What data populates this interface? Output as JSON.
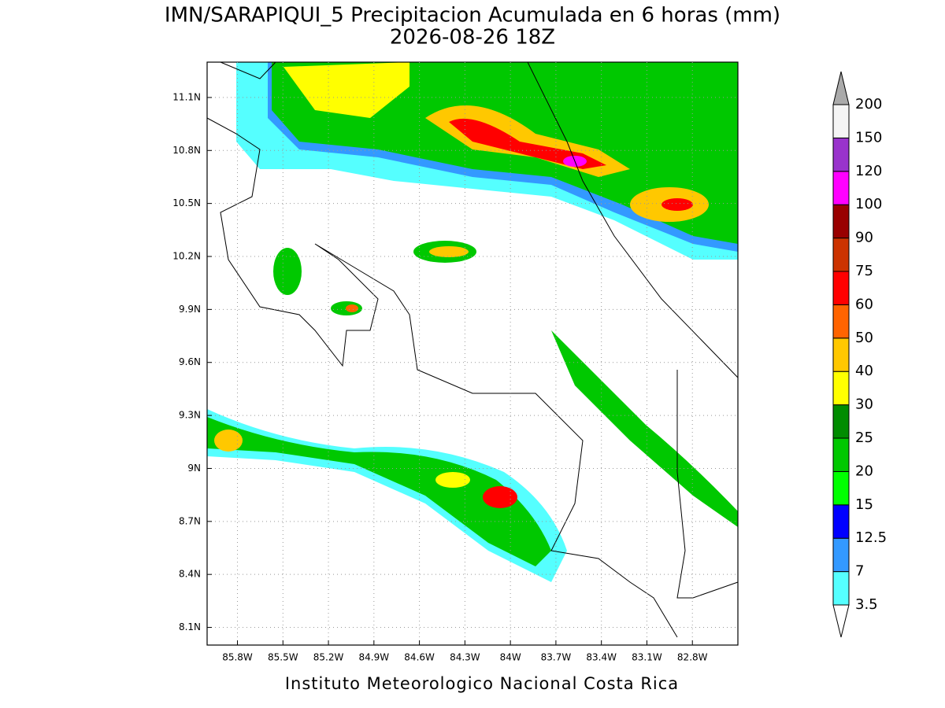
{
  "map": {
    "title": "IMN/SARAPIQUI_5 Precipitacion Acumulada en 6 horas (mm)",
    "subtitle": "2026-08-26 18Z",
    "footer": "Instituto Meteorologico Nacional Costa Rica",
    "xlim": [
      -86.0,
      -82.5
    ],
    "ylim": [
      8.0,
      11.3
    ],
    "xticks": [
      {
        "value": -85.8,
        "label": "85.8W"
      },
      {
        "value": -85.5,
        "label": "85.5W"
      },
      {
        "value": -85.2,
        "label": "85.2W"
      },
      {
        "value": -84.9,
        "label": "84.9W"
      },
      {
        "value": -84.6,
        "label": "84.6W"
      },
      {
        "value": -84.3,
        "label": "84.3W"
      },
      {
        "value": -84.0,
        "label": "84W"
      },
      {
        "value": -83.7,
        "label": "83.7W"
      },
      {
        "value": -83.4,
        "label": "83.4W"
      },
      {
        "value": -83.1,
        "label": "83.1W"
      },
      {
        "value": -82.8,
        "label": "82.8W"
      }
    ],
    "yticks": [
      {
        "value": 11.1,
        "label": "11.1N"
      },
      {
        "value": 10.8,
        "label": "10.8N"
      },
      {
        "value": 10.5,
        "label": "10.5N"
      },
      {
        "value": 10.2,
        "label": "10.2N"
      },
      {
        "value": 9.9,
        "label": "9.9N"
      },
      {
        "value": 9.6,
        "label": "9.6N"
      },
      {
        "value": 9.3,
        "label": "9.3N"
      },
      {
        "value": 9.0,
        "label": "9N"
      },
      {
        "value": 8.7,
        "label": "8.7N"
      },
      {
        "value": 8.4,
        "label": "8.4N"
      },
      {
        "value": 8.1,
        "label": "8.1N"
      }
    ],
    "grid": true,
    "colorbar": {
      "levels": [
        3.5,
        7,
        12.5,
        15,
        20,
        25,
        30,
        40,
        50,
        60,
        75,
        90,
        100,
        120,
        150,
        200
      ],
      "colors": [
        "#55ffff",
        "#3399ff",
        "#0000ff",
        "#00ff00",
        "#00c800",
        "#008c00",
        "#ffff00",
        "#ffc800",
        "#ff6400",
        "#ff0000",
        "#cc3300",
        "#990000",
        "#ff00ff",
        "#9933cc",
        "#f5f5f5"
      ],
      "under_color": "#ffffff",
      "over_color": "#aaaaaa"
    }
  }
}
